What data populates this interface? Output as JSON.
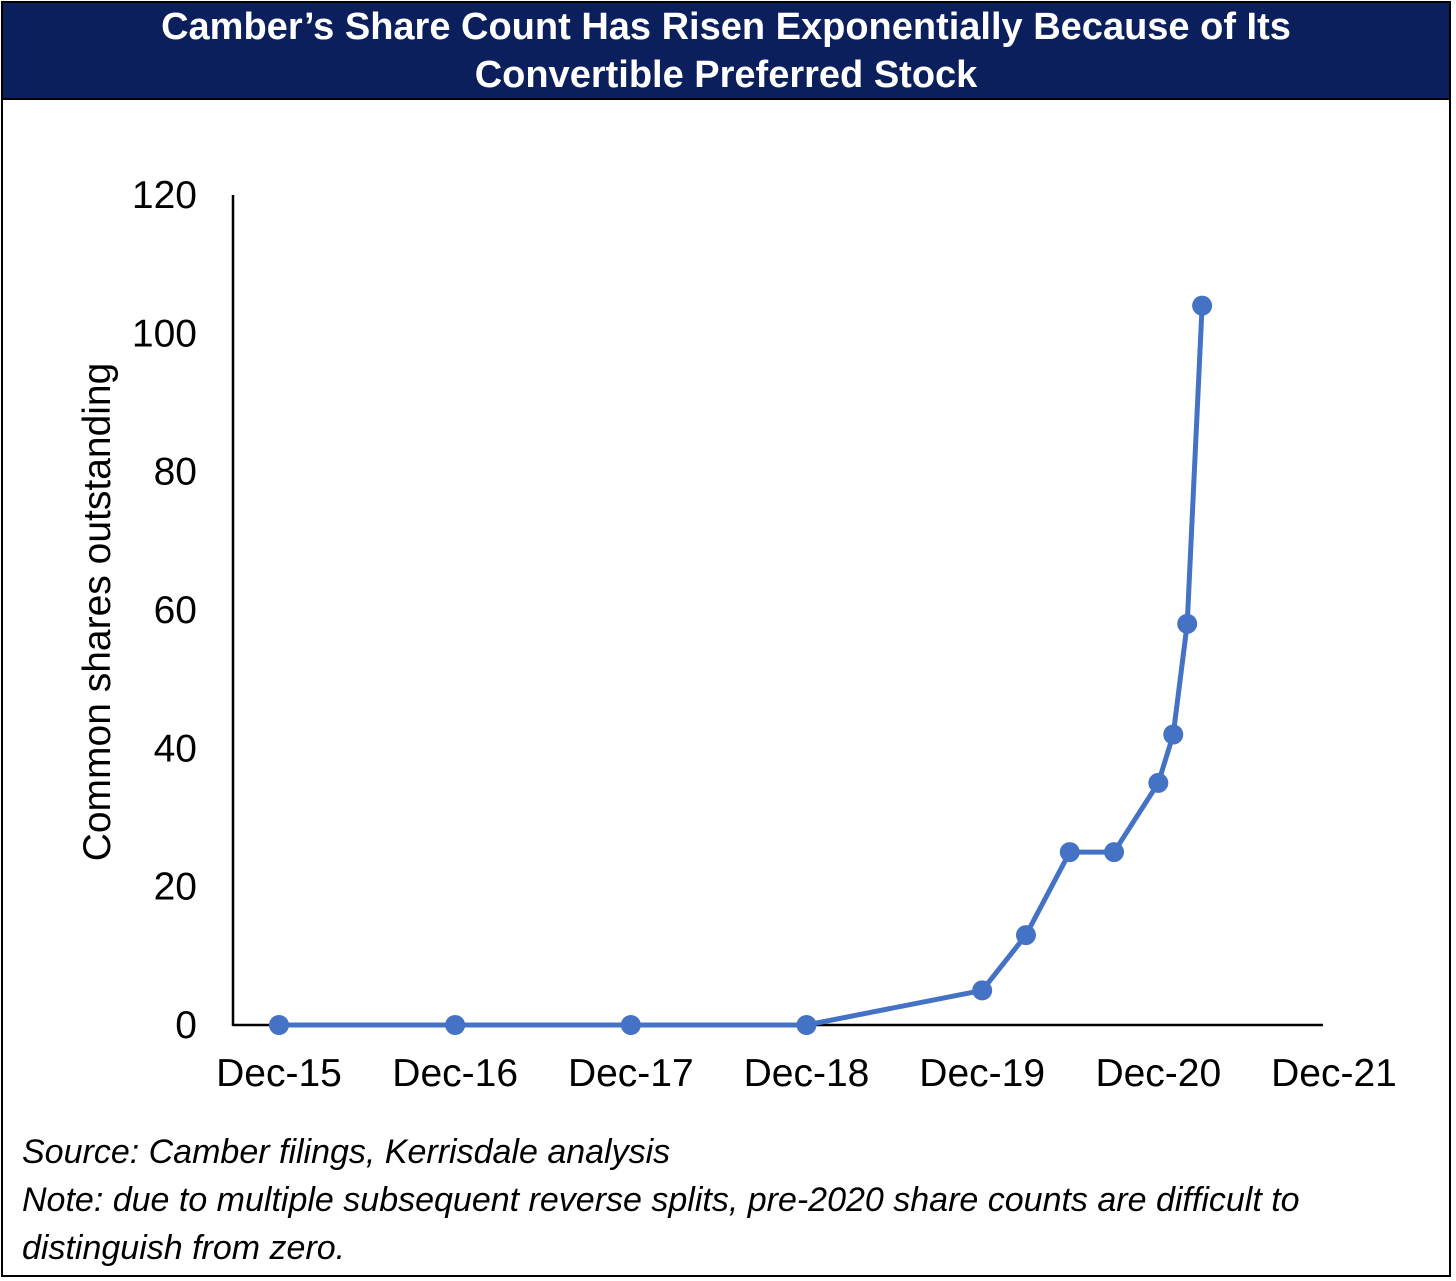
{
  "title": "Camber’s Share Count Has Risen Exponentially Because of Its Convertible Preferred Stock",
  "footer": {
    "source": "Source: Camber filings, Kerrisdale analysis",
    "note": "Note: due to multiple subsequent reverse splits, pre-2020 share counts are difficult to distinguish from zero."
  },
  "colors": {
    "title_bg": "#0b1f5c",
    "series": "#4472c4"
  },
  "chart_data": {
    "type": "line",
    "title": "",
    "xlabel": "",
    "ylabel": "Common shares outstanding",
    "ylim": [
      0,
      120
    ],
    "yticks": [
      0,
      20,
      40,
      60,
      80,
      100,
      120
    ],
    "xticks": [
      "Dec-15",
      "Dec-16",
      "Dec-17",
      "Dec-18",
      "Dec-19",
      "Dec-20",
      "Dec-21"
    ],
    "x_range": [
      "2015-12-31",
      "2021-12-31"
    ],
    "grid": false,
    "legend": "none",
    "series": [
      {
        "points": [
          {
            "x": "2015-12-31",
            "y": 0
          },
          {
            "x": "2016-12-31",
            "y": 0
          },
          {
            "x": "2017-12-31",
            "y": 0
          },
          {
            "x": "2018-12-31",
            "y": 0
          },
          {
            "x": "2019-12-31",
            "y": 5
          },
          {
            "x": "2020-03-31",
            "y": 13
          },
          {
            "x": "2020-06-30",
            "y": 25
          },
          {
            "x": "2020-09-30",
            "y": 25
          },
          {
            "x": "2020-12-31",
            "y": 35
          },
          {
            "x": "2021-01-31",
            "y": 42
          },
          {
            "x": "2021-03-01",
            "y": 58
          },
          {
            "x": "2021-04-01",
            "y": 104
          }
        ]
      }
    ]
  }
}
